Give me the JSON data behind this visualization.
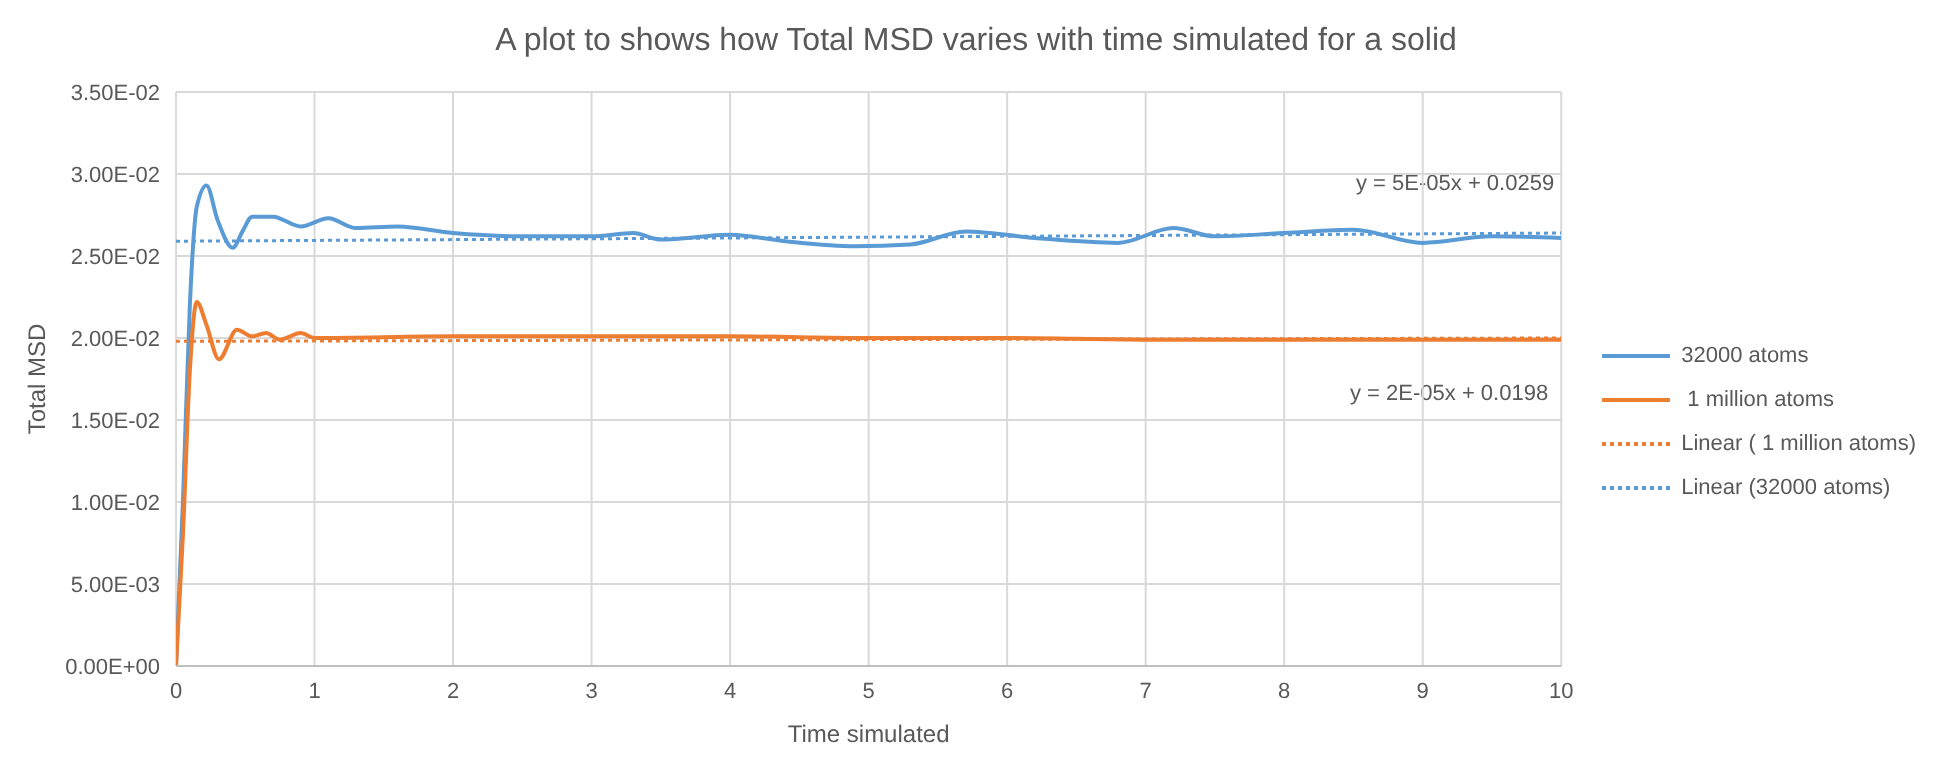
{
  "chart_data": {
    "type": "line",
    "title": "A plot to shows how Total MSD varies with time simulated for a solid",
    "xlabel": "Time simulated",
    "ylabel": "Total MSD",
    "xlim": [
      0,
      10
    ],
    "xticks": [
      0,
      1,
      2,
      3,
      4,
      5,
      6,
      7,
      8,
      9,
      10
    ],
    "ylim": [
      0,
      0.035
    ],
    "yticks": [
      {
        "value": 0,
        "label": "0.00E+00"
      },
      {
        "value": 0.005,
        "label": "5.00E-03"
      },
      {
        "value": 0.01,
        "label": "1.00E-02"
      },
      {
        "value": 0.015,
        "label": "1.50E-02"
      },
      {
        "value": 0.02,
        "label": "2.00E-02"
      },
      {
        "value": 0.025,
        "label": "2.50E-02"
      },
      {
        "value": 0.03,
        "label": "3.00E-02"
      },
      {
        "value": 0.035,
        "label": "3.50E-02"
      }
    ],
    "grid": true,
    "legend": "right",
    "marker": "none",
    "series": [
      {
        "name": "32000 atoms",
        "color": "#5b9bd5",
        "line_style": "solid",
        "x": [
          0,
          0.05,
          0.1,
          0.15,
          0.22,
          0.3,
          0.41,
          0.48,
          0.55,
          0.7,
          0.9,
          1.1,
          1.3,
          1.6,
          2,
          2.5,
          3,
          3.3,
          3.5,
          4,
          4.4,
          4.9,
          5.3,
          5.7,
          6.2,
          6.8,
          7.2,
          7.5,
          8,
          8.5,
          9,
          9.5,
          10
        ],
        "values": [
          0,
          0.01,
          0.022,
          0.028,
          0.0293,
          0.0272,
          0.0255,
          0.0265,
          0.0274,
          0.0274,
          0.0268,
          0.0273,
          0.0267,
          0.0268,
          0.0264,
          0.0262,
          0.0262,
          0.0264,
          0.026,
          0.0263,
          0.0259,
          0.0256,
          0.0257,
          0.0265,
          0.0261,
          0.0258,
          0.0267,
          0.0262,
          0.0264,
          0.0266,
          0.0258,
          0.0262,
          0.0261
        ]
      },
      {
        "name": " 1 million atoms",
        "color": "#ed7d31",
        "line_style": "solid",
        "x": [
          0,
          0.05,
          0.1,
          0.15,
          0.22,
          0.31,
          0.44,
          0.55,
          0.65,
          0.75,
          0.9,
          1,
          2,
          3,
          4,
          5,
          6,
          7,
          8,
          9,
          10
        ],
        "values": [
          0,
          0.008,
          0.018,
          0.0222,
          0.0208,
          0.0187,
          0.0205,
          0.0201,
          0.0203,
          0.0199,
          0.0203,
          0.02,
          0.0201,
          0.0201,
          0.0201,
          0.02,
          0.02,
          0.0199,
          0.0199,
          0.0199,
          0.0199
        ]
      },
      {
        "name": "Linear ( 1 million atoms)",
        "color": "#ed7d31",
        "line_style": "dotted",
        "x": [
          0,
          10
        ],
        "values": [
          0.0198,
          0.02
        ]
      },
      {
        "name": "Linear (32000 atoms)",
        "color": "#5b9bd5",
        "line_style": "dotted",
        "x": [
          0,
          10
        ],
        "values": [
          0.0259,
          0.0264
        ]
      }
    ],
    "annotations": [
      "y = 5E-05x + 0.0259",
      "y = 2E-05x + 0.0198"
    ]
  }
}
